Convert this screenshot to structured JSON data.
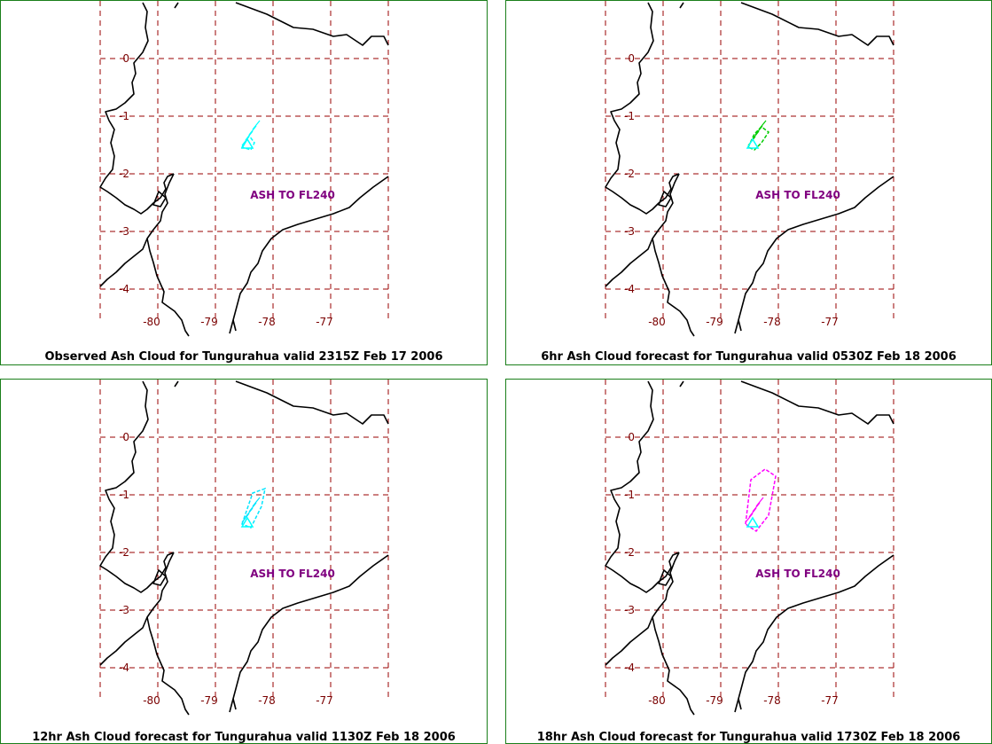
{
  "map": {
    "lon_labels": [
      "-80",
      "-79",
      "-78",
      "-77"
    ],
    "lat_labels": [
      "0",
      "-1",
      "-2",
      "-3",
      "-4"
    ],
    "grid_color": "#990000",
    "coast_color": "#000000",
    "annotation_color": "#800080"
  },
  "panels": [
    {
      "caption": "Observed Ash Cloud for Tungurahua valid 2315Z Feb 17 2006",
      "annotation": "ASH TO FL240",
      "ash_color": "#00ffff",
      "forecast_colors": [
        "#00ffff",
        "#008080"
      ]
    },
    {
      "caption": "6hr Ash Cloud forecast for Tungurahua valid 0530Z Feb 18 2006",
      "annotation": "ASH TO FL240",
      "ash_color": "#00ffff",
      "forecast_colors": [
        "#00cc00",
        "#00ff66"
      ]
    },
    {
      "caption": "12hr Ash Cloud forecast for Tungurahua valid 1130Z Feb 18 2006",
      "annotation": "ASH TO FL240",
      "ash_color": "#00ffff",
      "forecast_colors": [
        "#00e5ff"
      ]
    },
    {
      "caption": "18hr Ash Cloud forecast for Tungurahua valid 1730Z Feb 18 2006",
      "annotation": "ASH TO FL240",
      "ash_color": "#00ffff",
      "forecast_colors": [
        "#ff00ff"
      ]
    }
  ]
}
